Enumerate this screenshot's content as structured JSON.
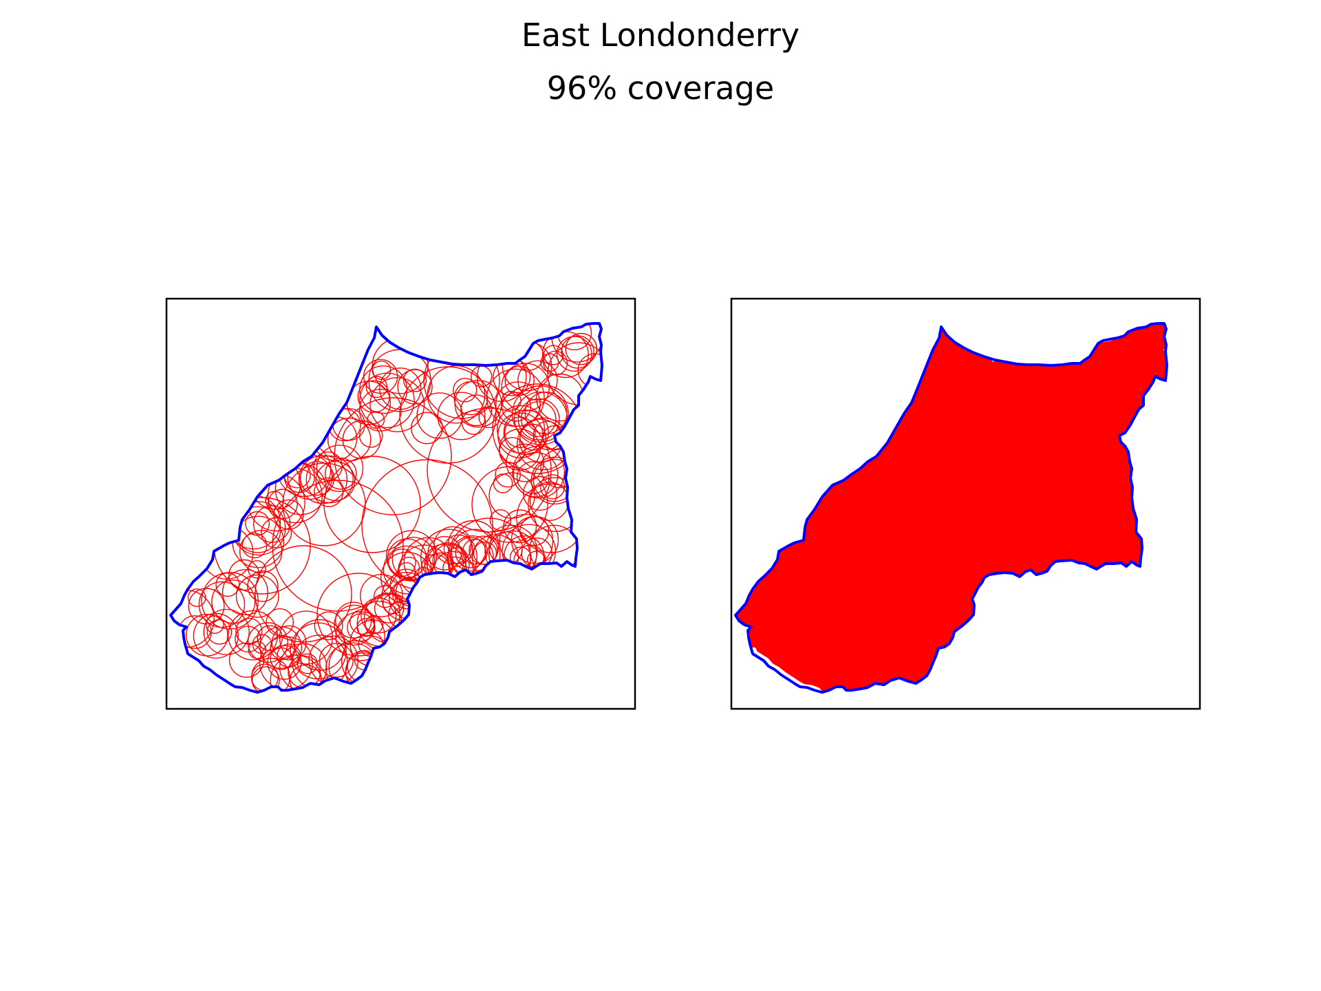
{
  "figure": {
    "title": "East Londonderry",
    "subtitle": "96% coverage"
  },
  "colors": {
    "boundary": "#0000ff",
    "circles": "#ff0000",
    "fill": "#ff0000",
    "frame": "#000000",
    "background": "#ffffff"
  },
  "panels": [
    {
      "name": "circle-packing-panel",
      "style": "outlined-circles"
    },
    {
      "name": "union-coverage-panel",
      "style": "filled-union"
    }
  ]
}
